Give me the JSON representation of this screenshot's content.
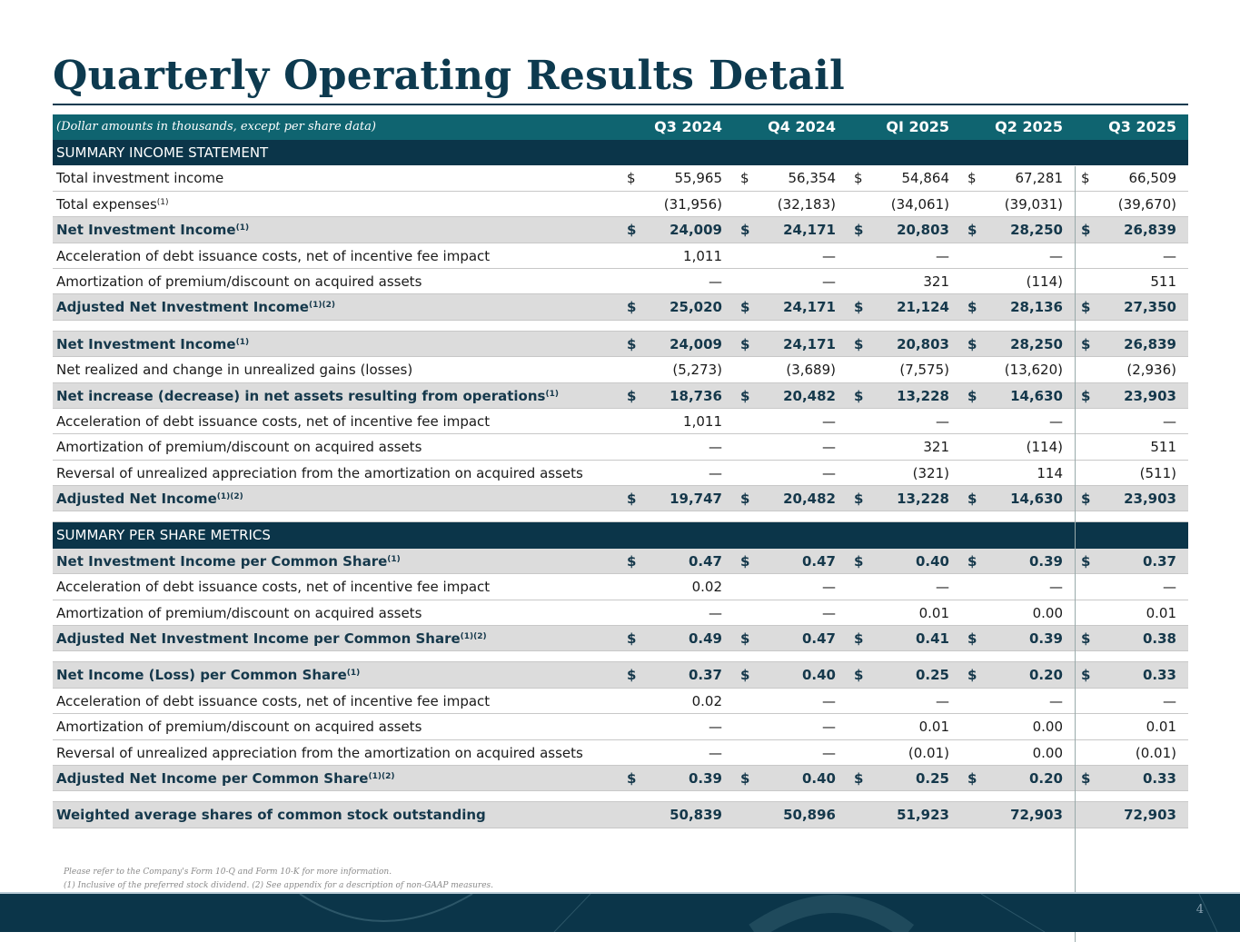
{
  "title": "Quarterly Operating Results Detail",
  "header": {
    "note": "(Dollar amounts in thousands, except per share data)",
    "columns": [
      "Q3 2024",
      "Q4 2024",
      "QI 2025",
      "Q2 2025",
      "Q3 2025"
    ]
  },
  "rows": [
    {
      "type": "section",
      "label": "SUMMARY INCOME STATEMENT"
    },
    {
      "type": "normal",
      "label": "Total investment income",
      "dollar": true,
      "values": [
        "55,965",
        "56,354",
        "54,864",
        "67,281",
        "66,509"
      ]
    },
    {
      "type": "normal",
      "label": "Total expenses",
      "sup": "(1)",
      "values": [
        "(31,956)",
        "(32,183)",
        "(34,061)",
        "(39,031)",
        "(39,670)"
      ]
    },
    {
      "type": "bold",
      "label": "Net Investment Income",
      "sup": "(1)",
      "dollar": true,
      "values": [
        "24,009",
        "24,171",
        "20,803",
        "28,250",
        "26,839"
      ]
    },
    {
      "type": "normal",
      "label": "Acceleration of debt issuance costs, net of incentive fee impact",
      "values": [
        "1,011",
        "—",
        "—",
        "—",
        "—"
      ]
    },
    {
      "type": "normal",
      "label": "Amortization of premium/discount on acquired assets",
      "values": [
        "—",
        "—",
        "321",
        "(114)",
        "511"
      ]
    },
    {
      "type": "bold",
      "label": "Adjusted Net Investment Income",
      "sup": "(1)(2)",
      "dollar": true,
      "values": [
        "25,020",
        "24,171",
        "21,124",
        "28,136",
        "27,350"
      ]
    },
    {
      "type": "spacer"
    },
    {
      "type": "bold",
      "label": "Net Investment Income",
      "sup": "(1)",
      "dollar": true,
      "values": [
        "24,009",
        "24,171",
        "20,803",
        "28,250",
        "26,839"
      ]
    },
    {
      "type": "normal",
      "label": "Net realized and change in unrealized gains (losses)",
      "values": [
        "(5,273)",
        "(3,689)",
        "(7,575)",
        "(13,620)",
        "(2,936)"
      ]
    },
    {
      "type": "bold",
      "label": "Net increase (decrease) in net assets resulting from operations",
      "sup": "(1)",
      "dollar": true,
      "values": [
        "18,736",
        "20,482",
        "13,228",
        "14,630",
        "23,903"
      ]
    },
    {
      "type": "normal",
      "label": "Acceleration of debt issuance costs, net of incentive fee impact",
      "values": [
        "1,011",
        "—",
        "—",
        "—",
        "—"
      ]
    },
    {
      "type": "normal",
      "label": "Amortization of premium/discount on acquired assets",
      "values": [
        "—",
        "—",
        "321",
        "(114)",
        "511"
      ]
    },
    {
      "type": "normal",
      "label": "Reversal of unrealized appreciation from the amortization on acquired assets",
      "values": [
        "—",
        "—",
        "(321)",
        "114",
        "(511)"
      ]
    },
    {
      "type": "bold",
      "label": "Adjusted Net Income",
      "sup": "(1)(2)",
      "dollar": true,
      "values": [
        "19,747",
        "20,482",
        "13,228",
        "14,630",
        "23,903"
      ]
    },
    {
      "type": "spacer"
    },
    {
      "type": "section",
      "label": "SUMMARY PER SHARE METRICS"
    },
    {
      "type": "bold",
      "label": "Net Investment Income per Common Share",
      "sup": "(1)",
      "dollar": true,
      "values": [
        "0.47",
        "0.47",
        "0.40",
        "0.39",
        "0.37"
      ]
    },
    {
      "type": "normal",
      "label": "Acceleration of debt issuance costs, net of incentive fee impact",
      "values": [
        "0.02",
        "—",
        "—",
        "—",
        "—"
      ]
    },
    {
      "type": "normal",
      "label": "Amortization of premium/discount on acquired assets",
      "values": [
        "—",
        "—",
        "0.01",
        "0.00",
        "0.01"
      ]
    },
    {
      "type": "bold",
      "label": "Adjusted Net Investment Income per Common Share",
      "sup": "(1)(2)",
      "dollar": true,
      "values": [
        "0.49",
        "0.47",
        "0.41",
        "0.39",
        "0.38"
      ]
    },
    {
      "type": "spacer"
    },
    {
      "type": "bold",
      "label": "Net Income (Loss) per Common Share",
      "sup": "(1)",
      "dollar": true,
      "values": [
        "0.37",
        "0.40",
        "0.25",
        "0.20",
        "0.33"
      ]
    },
    {
      "type": "normal",
      "label": "Acceleration of debt issuance costs, net of incentive fee impact",
      "values": [
        "0.02",
        "—",
        "—",
        "—",
        "—"
      ]
    },
    {
      "type": "normal",
      "label": "Amortization of premium/discount on acquired assets",
      "values": [
        "—",
        "—",
        "0.01",
        "0.00",
        "0.01"
      ]
    },
    {
      "type": "normal",
      "label": "Reversal of unrealized appreciation from the amortization on acquired assets",
      "values": [
        "—",
        "—",
        "(0.01)",
        "0.00",
        "(0.01)"
      ]
    },
    {
      "type": "bold",
      "label": "Adjusted Net Income per Common Share",
      "sup": "(1)(2)",
      "dollar": true,
      "values": [
        "0.39",
        "0.40",
        "0.25",
        "0.20",
        "0.33"
      ]
    },
    {
      "type": "spacer"
    },
    {
      "type": "bold",
      "label": "Weighted average shares of common stock outstanding",
      "values": [
        "50,839",
        "50,896",
        "51,923",
        "72,903",
        "72,903"
      ]
    }
  ],
  "dollar_sign": "$",
  "footnotes": [
    "Please refer to the Company's Form 10-Q and Form 10-K for more information.",
    "(1) Inclusive of the preferred stock dividend. (2) See appendix for a description of non-GAAP measures."
  ],
  "page_number": "4",
  "colors": {
    "header": "#0f6470",
    "section": "#0b3549",
    "highlight_row": "#dcdcdc",
    "title": "#0d3a4f"
  }
}
